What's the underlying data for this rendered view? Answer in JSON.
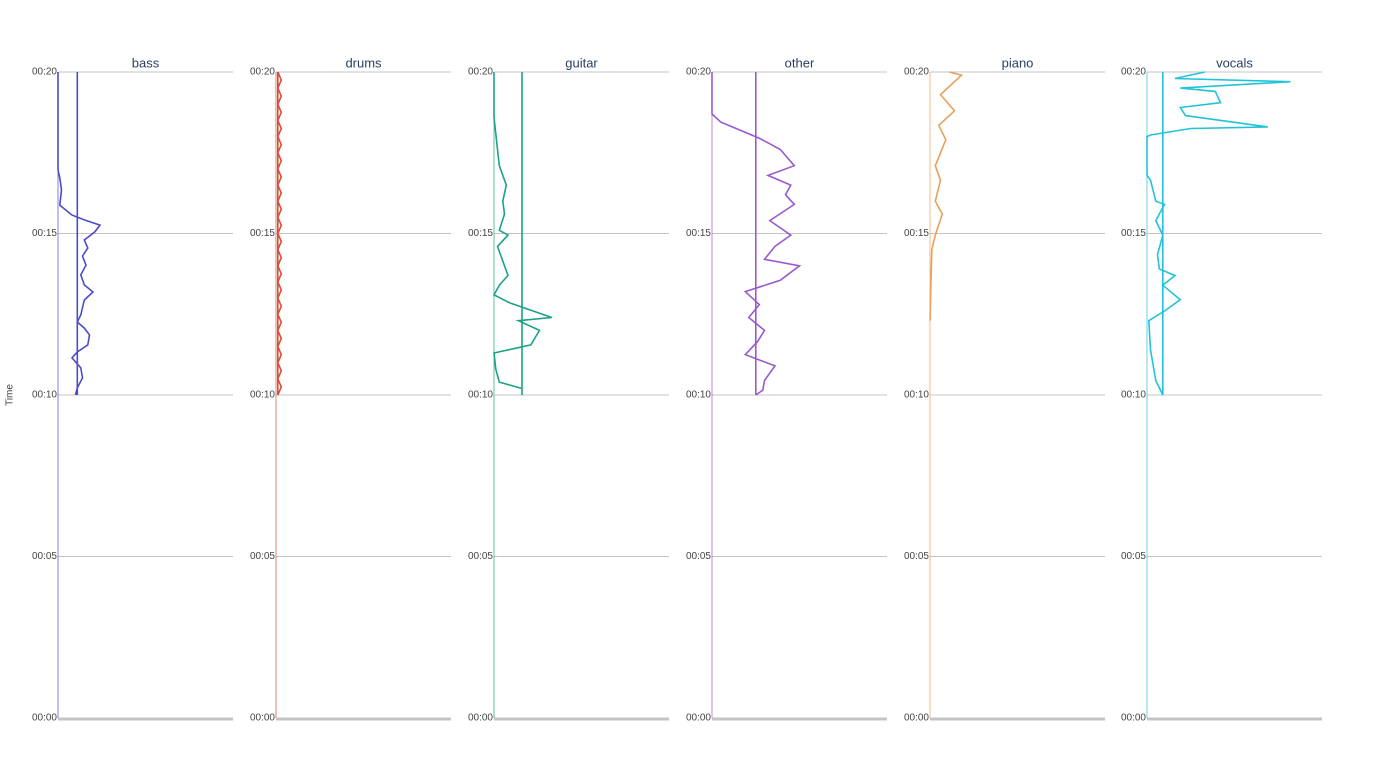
{
  "chart_data": [
    {
      "type": "line",
      "title": "bass",
      "ylabel": "Time",
      "color": "#4c4cc8",
      "grid": true,
      "xlim": [
        0,
        100
      ],
      "ylim": [
        0,
        20
      ],
      "yticks": [
        {
          "value": 0,
          "label": "00:00"
        },
        {
          "value": 5,
          "label": "00:05"
        },
        {
          "value": 10,
          "label": "00:10"
        },
        {
          "value": 15,
          "label": "00:15"
        },
        {
          "value": 20,
          "label": "00:20"
        }
      ],
      "series": [
        {
          "color": "#4c4cc8",
          "x": [
            10,
            11,
            14,
            13,
            8,
            11,
            17,
            18,
            15,
            11,
            13,
            15,
            20,
            15,
            13,
            16,
            14,
            17,
            15,
            21,
            24,
            15,
            8,
            1,
            2,
            1,
            0,
            0
          ],
          "y": [
            10,
            10.22,
            10.53,
            10.84,
            11.15,
            11.33,
            11.55,
            11.86,
            12.07,
            12.26,
            12.48,
            12.94,
            13.19,
            13.41,
            13.72,
            14.02,
            14.3,
            14.55,
            14.8,
            15.05,
            15.26,
            15.42,
            15.57,
            15.88,
            16.35,
            16.72,
            16.97,
            20
          ]
        },
        {
          "color": "#4c4cc8",
          "x": [
            11,
            11
          ],
          "y": [
            10,
            20
          ]
        }
      ]
    },
    {
      "type": "line",
      "title": "drums",
      "color": "#d4503a",
      "grid": true,
      "xlim": [
        0,
        100
      ],
      "ylim": [
        0,
        20
      ],
      "yticks": [
        {
          "value": 0,
          "label": "00:00"
        },
        {
          "value": 5,
          "label": "00:05"
        },
        {
          "value": 10,
          "label": "00:10"
        },
        {
          "value": 15,
          "label": "00:15"
        },
        {
          "value": 20,
          "label": "00:20"
        }
      ],
      "series": [
        {
          "color": "#d4503a",
          "x": [
            1,
            3,
            1,
            3,
            1,
            3,
            1,
            3,
            1,
            3,
            1,
            3,
            1,
            3,
            1,
            3,
            1,
            3,
            1,
            3,
            1,
            3,
            1,
            3,
            1,
            3,
            1,
            3,
            1,
            3,
            1,
            3,
            1,
            3,
            1,
            3,
            1,
            3,
            1,
            3,
            1
          ],
          "y": [
            10,
            10.25,
            10.5,
            10.75,
            11,
            11.25,
            11.5,
            11.75,
            12,
            12.25,
            12.5,
            12.75,
            13,
            13.25,
            13.5,
            13.75,
            14,
            14.25,
            14.5,
            14.75,
            15,
            15.25,
            15.5,
            15.75,
            16,
            16.25,
            16.5,
            16.75,
            17,
            17.25,
            17.5,
            17.75,
            18,
            18.25,
            18.5,
            18.75,
            19,
            19.25,
            19.5,
            19.75,
            20
          ]
        },
        {
          "color": "#d4503a",
          "x": [
            1,
            1
          ],
          "y": [
            10,
            20
          ]
        }
      ]
    },
    {
      "type": "line",
      "title": "guitar",
      "color": "#1aa386",
      "grid": true,
      "xlim": [
        0,
        100
      ],
      "ylim": [
        0,
        20
      ],
      "yticks": [
        {
          "value": 0,
          "label": "00:00"
        },
        {
          "value": 5,
          "label": "00:05"
        },
        {
          "value": 10,
          "label": "00:10"
        },
        {
          "value": 15,
          "label": "00:15"
        },
        {
          "value": 20,
          "label": "00:20"
        }
      ],
      "series": [
        {
          "color": "#1aa386",
          "x": [
            16,
            3,
            1,
            0,
            21,
            26,
            14,
            33,
            9,
            0,
            3,
            8,
            6,
            2,
            8,
            3,
            6,
            5,
            7,
            3,
            2,
            0,
            0
          ],
          "y": [
            10.2,
            10.4,
            10.8,
            11.3,
            11.55,
            12,
            12.3,
            12.4,
            12.85,
            13.1,
            13.4,
            13.7,
            14,
            14.6,
            14.95,
            15.1,
            15.6,
            16,
            16.5,
            17.1,
            17.6,
            18.6,
            20
          ]
        },
        {
          "color": "#1aa386",
          "x": [
            16,
            16
          ],
          "y": [
            10,
            20
          ]
        }
      ]
    },
    {
      "type": "line",
      "title": "other",
      "color": "#9b59d0",
      "grid": true,
      "xlim": [
        0,
        100
      ],
      "ylim": [
        0,
        20
      ],
      "yticks": [
        {
          "value": 0,
          "label": "00:00"
        },
        {
          "value": 5,
          "label": "00:05"
        },
        {
          "value": 10,
          "label": "00:10"
        },
        {
          "value": 15,
          "label": "00:15"
        },
        {
          "value": 20,
          "label": "00:20"
        }
      ],
      "series": [
        {
          "color": "#9b59d0",
          "x": [
            25,
            29,
            30,
            36,
            19,
            26,
            30,
            21,
            27,
            19,
            39,
            50,
            30,
            36,
            45,
            33,
            47,
            42,
            45,
            32,
            47,
            39,
            27,
            16,
            5,
            0,
            0
          ],
          "y": [
            10,
            10.15,
            10.45,
            10.9,
            11.25,
            11.65,
            12,
            12.4,
            12.8,
            13.2,
            13.55,
            14,
            14.2,
            14.6,
            14.95,
            15.4,
            15.9,
            16.2,
            16.5,
            16.8,
            17.1,
            17.6,
            17.95,
            18.2,
            18.45,
            18.7,
            20
          ]
        },
        {
          "color": "#9b59d0",
          "x": [
            25,
            25
          ],
          "y": [
            10,
            20
          ]
        }
      ]
    },
    {
      "type": "line",
      "title": "piano",
      "color": "#e8a05a",
      "grid": true,
      "xlim": [
        0,
        100
      ],
      "ylim": [
        0,
        20
      ],
      "yticks": [
        {
          "value": 0,
          "label": "00:00"
        },
        {
          "value": 5,
          "label": "00:05"
        },
        {
          "value": 10,
          "label": "00:10"
        },
        {
          "value": 15,
          "label": "00:15"
        },
        {
          "value": 20,
          "label": "00:20"
        }
      ],
      "series": [
        {
          "color": "#e8a05a",
          "x": [
            0,
            1,
            3,
            7,
            3,
            6,
            3,
            9,
            5,
            14,
            6,
            18,
            11
          ],
          "y": [
            12.3,
            14.5,
            14.95,
            15.6,
            16,
            16.65,
            17.1,
            17.9,
            18.35,
            18.8,
            19.3,
            19.9,
            20
          ]
        }
      ]
    },
    {
      "type": "line",
      "title": "vocals",
      "color": "#22c3d8",
      "grid": true,
      "xlim": [
        0,
        100
      ],
      "ylim": [
        0,
        20
      ],
      "yticks": [
        {
          "value": 0,
          "label": "00:00"
        },
        {
          "value": 5,
          "label": "00:05"
        },
        {
          "value": 10,
          "label": "00:10"
        },
        {
          "value": 15,
          "label": "00:15"
        },
        {
          "value": 20,
          "label": "00:20"
        }
      ],
      "series": [
        {
          "color": "#22c3d8",
          "x": [
            9,
            5,
            2,
            1,
            10,
            19,
            9,
            16,
            7,
            6,
            9,
            5,
            10,
            5,
            2,
            0,
            0,
            2,
            25,
            69,
            22,
            19,
            42,
            39,
            19,
            82,
            16,
            33
          ],
          "y": [
            10,
            10.45,
            11.4,
            12.3,
            12.6,
            12.95,
            13.4,
            13.7,
            13.9,
            14.35,
            14.95,
            15.4,
            15.9,
            16,
            16.65,
            16.8,
            18,
            18.05,
            18.25,
            18.3,
            18.65,
            18.9,
            19.05,
            19.4,
            19.5,
            19.7,
            19.8,
            20
          ]
        },
        {
          "color": "#22c3d8",
          "x": [
            9,
            9
          ],
          "y": [
            10,
            20
          ]
        }
      ]
    }
  ]
}
